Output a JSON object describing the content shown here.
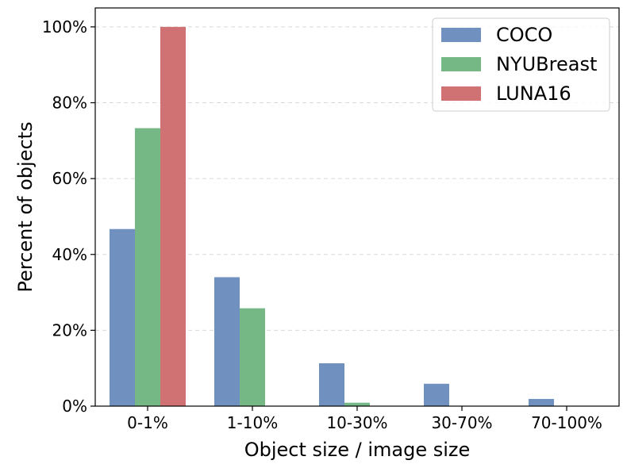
{
  "chart_data": {
    "type": "bar",
    "title": "",
    "xlabel": "Object size / image size",
    "ylabel": "Percent of objects",
    "categories": [
      "0-1%",
      "1-10%",
      "10-30%",
      "30-70%",
      "70-100%"
    ],
    "y_ticks": [
      "0%",
      "20%",
      "40%",
      "60%",
      "80%",
      "100%"
    ],
    "ylim": [
      0,
      105
    ],
    "grid": true,
    "legend_position": "top-right",
    "series": [
      {
        "name": "COCO",
        "color": "#7090c0",
        "values": [
          46.7,
          34.0,
          11.3,
          5.9,
          1.9
        ]
      },
      {
        "name": "NYUBreast",
        "color": "#75b886",
        "values": [
          73.3,
          25.8,
          0.9,
          0,
          0
        ]
      },
      {
        "name": "LUNA16",
        "color": "#d07174",
        "values": [
          100,
          0,
          0,
          0,
          0
        ]
      }
    ]
  }
}
